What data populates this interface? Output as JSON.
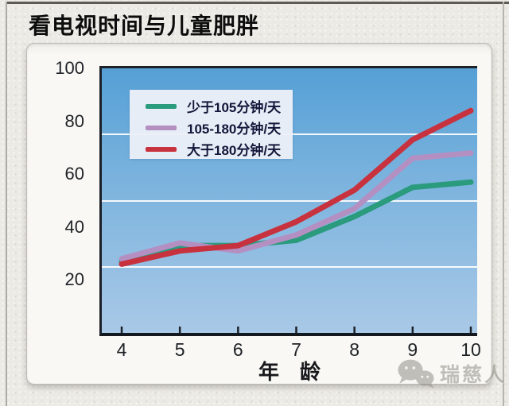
{
  "title": "看电视时间与儿童肥胖",
  "chart_data": {
    "type": "line",
    "x": [
      4,
      5,
      6,
      7,
      8,
      9,
      10
    ],
    "xlabel": "年　龄",
    "ylim": [
      0,
      100
    ],
    "yticks": [
      20,
      40,
      60,
      80,
      100
    ],
    "gridlines_at": [
      25,
      50,
      75
    ],
    "grid": true,
    "legend_position": "top-left",
    "series": [
      {
        "name": "少于105分钟/天",
        "color": "#2a9b7d",
        "values": [
          27,
          33,
          33,
          35,
          44,
          55,
          57
        ]
      },
      {
        "name": "105-180分钟/天",
        "color": "#b48fc2",
        "values": [
          28,
          34,
          31,
          37,
          47,
          66,
          68
        ]
      },
      {
        "name": "大于180分钟/天",
        "color": "#c8323e",
        "values": [
          26,
          31,
          33,
          42,
          54,
          73,
          84
        ]
      }
    ]
  },
  "watermark": {
    "icon": "wechat-icon",
    "text": "瑞慈人"
  },
  "colors": {
    "plot_top": "#55a0d6",
    "plot_bottom": "#a9c9e7",
    "axis": "#1c2028",
    "gridline": "#ffffff",
    "legend_bg": "#ecEFf7",
    "legend_text": "#14163a",
    "panel_bg": "#f8f7f3",
    "page_bg": "#eceae5",
    "title_text": "#0d0d0d",
    "watermark_gray": "#8f8d86"
  }
}
